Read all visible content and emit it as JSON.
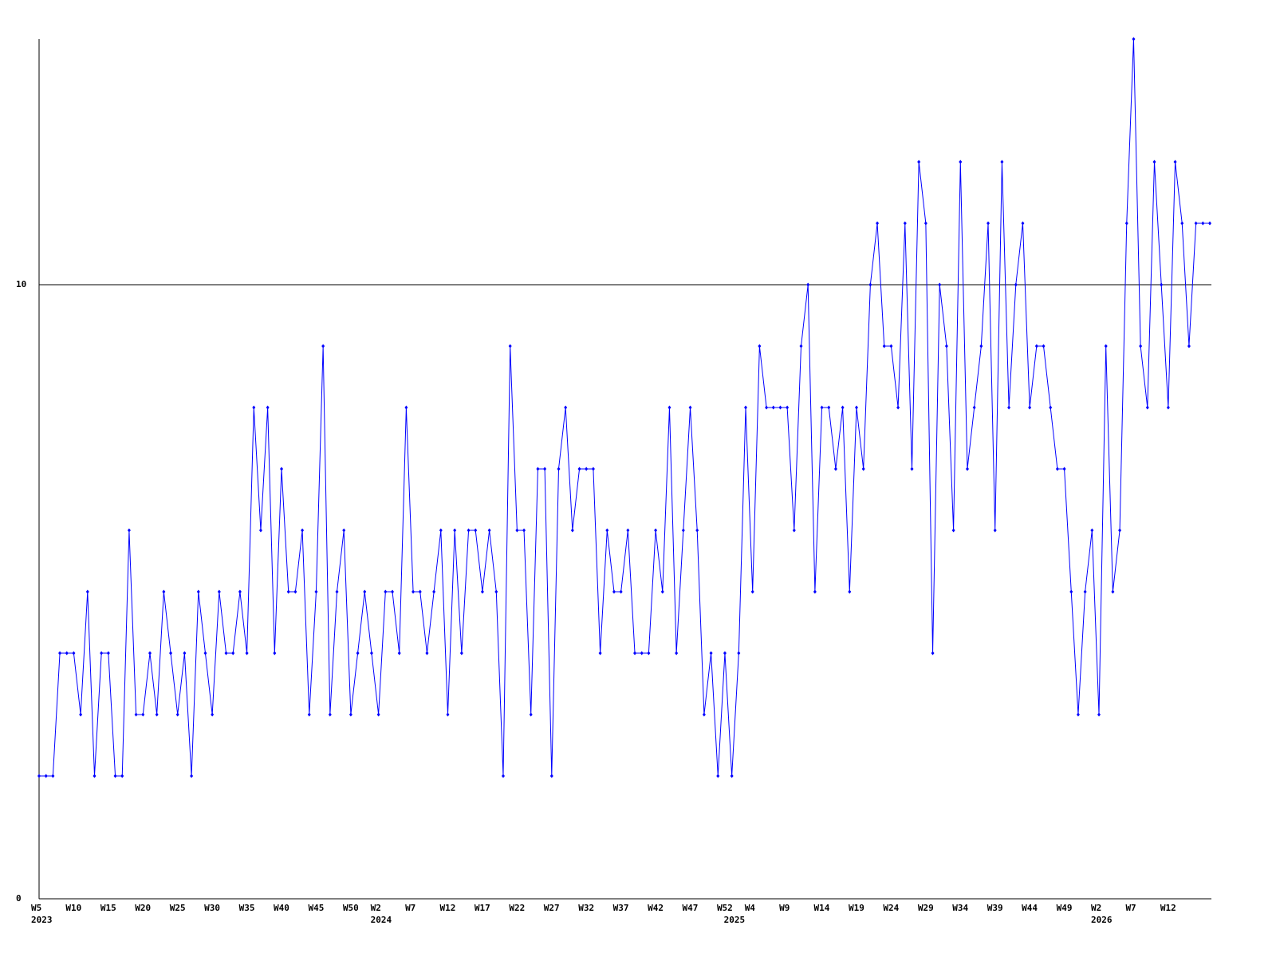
{
  "chart_data": {
    "type": "line",
    "color": "#0000ff",
    "ylim": [
      0,
      14
    ],
    "yticks": [
      0,
      10
    ],
    "grid": true,
    "categories": [
      "W5",
      null,
      null,
      null,
      null,
      "W10",
      null,
      null,
      null,
      null,
      "W15",
      null,
      null,
      null,
      null,
      "W20",
      null,
      null,
      null,
      null,
      "W25",
      null,
      null,
      null,
      null,
      "W30",
      null,
      null,
      null,
      null,
      "W35",
      null,
      null,
      null,
      null,
      "W40",
      null,
      null,
      null,
      null,
      "W45",
      null,
      null,
      null,
      null,
      "W50",
      null,
      null,
      null,
      "W2",
      null,
      null,
      null,
      null,
      "W7",
      null,
      null,
      null,
      null,
      "W12",
      null,
      null,
      null,
      null,
      "W17",
      null,
      null,
      null,
      null,
      "W22",
      null,
      null,
      null,
      null,
      "W27",
      null,
      null,
      null,
      null,
      "W32",
      null,
      null,
      null,
      null,
      "W37",
      null,
      null,
      null,
      null,
      "W42",
      null,
      null,
      null,
      null,
      "W47",
      null,
      null,
      null,
      null,
      "W52",
      null,
      null,
      null,
      "W4",
      null,
      null,
      null,
      null,
      "W9",
      null,
      null,
      null,
      null,
      "W14",
      null,
      null,
      null,
      null,
      "W19",
      null,
      null,
      null,
      null,
      "W24",
      null,
      null,
      null,
      null,
      "W29",
      null,
      null,
      null,
      null,
      "W34",
      null,
      null,
      null,
      null,
      "W39",
      null,
      null,
      null,
      null,
      "W44",
      null,
      null,
      null,
      null,
      "W49",
      null,
      null,
      null,
      null,
      "W2",
      null,
      null,
      null,
      null,
      "W7",
      null,
      null,
      null,
      null,
      "W12",
      null,
      null,
      null,
      null,
      null,
      null
    ],
    "years": [
      "2023",
      null,
      null,
      null,
      null,
      null,
      null,
      null,
      null,
      null,
      null,
      null,
      null,
      null,
      null,
      null,
      null,
      null,
      null,
      null,
      null,
      null,
      null,
      null,
      null,
      null,
      null,
      null,
      null,
      null,
      null,
      null,
      null,
      null,
      null,
      null,
      null,
      null,
      null,
      null,
      null,
      null,
      null,
      null,
      null,
      null,
      null,
      null,
      null,
      "2024",
      null,
      null,
      null,
      null,
      null,
      null,
      null,
      null,
      null,
      null,
      null,
      null,
      null,
      null,
      null,
      null,
      null,
      null,
      null,
      null,
      null,
      null,
      null,
      null,
      null,
      null,
      null,
      null,
      null,
      null,
      null,
      null,
      null,
      null,
      null,
      null,
      null,
      null,
      null,
      null,
      null,
      null,
      null,
      null,
      null,
      null,
      null,
      null,
      null,
      null,
      "2025",
      null,
      null,
      null,
      null,
      null,
      null,
      null,
      null,
      null,
      null,
      null,
      null,
      null,
      null,
      null,
      null,
      null,
      null,
      null,
      null,
      null,
      null,
      null,
      null,
      null,
      null,
      null,
      null,
      null,
      null,
      null,
      null,
      null,
      null,
      null,
      null,
      null,
      null,
      null,
      null,
      null,
      null,
      null,
      null,
      null,
      null,
      null,
      null,
      null,
      null,
      null,
      null,
      "2026",
      null,
      null,
      null,
      null,
      null,
      null,
      null,
      null,
      null,
      null,
      null,
      null,
      null,
      null,
      null,
      null
    ],
    "values": [
      2,
      2,
      2,
      4,
      4,
      4,
      3,
      5,
      2,
      4,
      4,
      2,
      2,
      6,
      3,
      3,
      4,
      3,
      5,
      4,
      3,
      4,
      2,
      5,
      4,
      3,
      5,
      4,
      4,
      5,
      4,
      8,
      6,
      8,
      4,
      7,
      5,
      5,
      6,
      3,
      5,
      9,
      3,
      5,
      6,
      3,
      4,
      5,
      4,
      3,
      5,
      5,
      4,
      8,
      5,
      5,
      4,
      5,
      6,
      3,
      6,
      4,
      6,
      6,
      5,
      6,
      5,
      2,
      9,
      6,
      6,
      3,
      7,
      7,
      2,
      7,
      8,
      6,
      7,
      7,
      7,
      4,
      6,
      5,
      5,
      6,
      4,
      4,
      4,
      6,
      5,
      8,
      4,
      6,
      8,
      6,
      3,
      4,
      2,
      4,
      2,
      4,
      8,
      5,
      9,
      8,
      8,
      8,
      8,
      6,
      9,
      10,
      5,
      8,
      8,
      7,
      8,
      5,
      8,
      7,
      10,
      11,
      9,
      9,
      8,
      11,
      7,
      12,
      11,
      4,
      10,
      9,
      6,
      12,
      7,
      8,
      9,
      11,
      6,
      12,
      8,
      10,
      11,
      8,
      9,
      9,
      8,
      7,
      7,
      5,
      3,
      5,
      6,
      3,
      9,
      5,
      6,
      11,
      14,
      9,
      8,
      12,
      10,
      8,
      12,
      11,
      9,
      11,
      11,
      11
    ]
  }
}
